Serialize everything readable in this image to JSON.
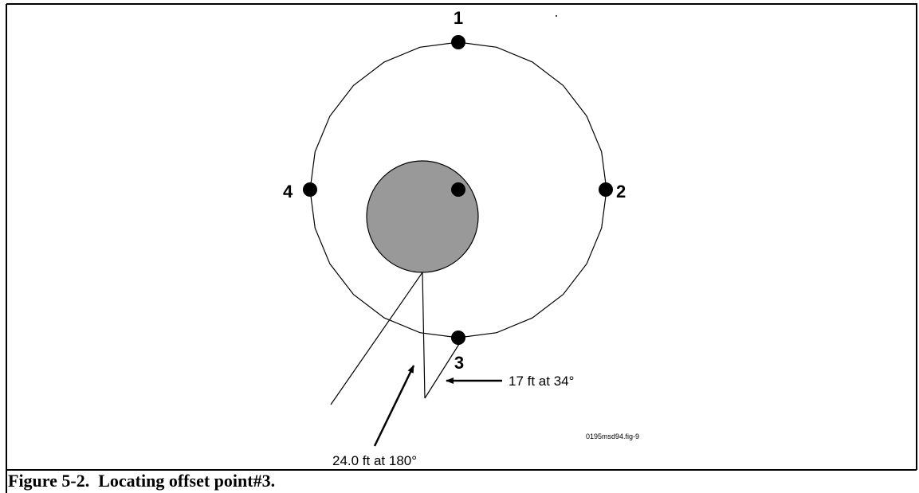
{
  "nodes": [
    {
      "label": "1"
    },
    {
      "label": "2"
    },
    {
      "label": "3"
    },
    {
      "label": "4"
    }
  ],
  "annotations": [
    "17 ft at 34°",
    "24.0 ft at 180°"
  ],
  "figure_id": "0195msd94.fig-9",
  "caption": "Figure 5-2.  Locating offset point#3."
}
